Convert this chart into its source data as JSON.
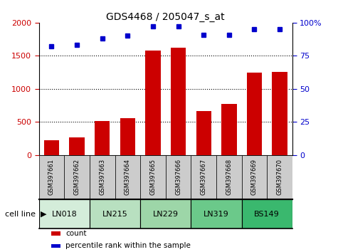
{
  "title": "GDS4468 / 205047_s_at",
  "samples": [
    "GSM397661",
    "GSM397662",
    "GSM397663",
    "GSM397664",
    "GSM397665",
    "GSM397666",
    "GSM397667",
    "GSM397668",
    "GSM397669",
    "GSM397670"
  ],
  "counts": [
    220,
    270,
    510,
    555,
    1580,
    1620,
    670,
    775,
    1250,
    1260
  ],
  "percentiles": [
    82,
    83,
    88,
    90,
    97,
    97,
    91,
    91,
    95,
    95
  ],
  "cell_lines": [
    {
      "label": "LN018",
      "start": 0,
      "end": 2,
      "color": "#d4edda"
    },
    {
      "label": "LN215",
      "start": 2,
      "end": 4,
      "color": "#b8e0c0"
    },
    {
      "label": "LN229",
      "start": 4,
      "end": 6,
      "color": "#9dd6a8"
    },
    {
      "label": "LN319",
      "start": 6,
      "end": 8,
      "color": "#6bc98a"
    },
    {
      "label": "BS149",
      "start": 8,
      "end": 10,
      "color": "#3ab86e"
    }
  ],
  "bar_color": "#cc0000",
  "dot_color": "#0000cc",
  "left_ylim": [
    0,
    2000
  ],
  "right_ylim": [
    0,
    100
  ],
  "left_yticks": [
    0,
    500,
    1000,
    1500,
    2000
  ],
  "right_yticks": [
    0,
    25,
    50,
    75,
    100
  ],
  "right_yticklabels": [
    "0",
    "25",
    "50",
    "75",
    "100%"
  ],
  "grid_values": [
    500,
    1000,
    1500
  ],
  "background_color": "#ffffff",
  "sample_box_color": "#cccccc",
  "legend_items": [
    {
      "label": "count",
      "color": "#cc0000"
    },
    {
      "label": "percentile rank within the sample",
      "color": "#0000cc"
    }
  ]
}
